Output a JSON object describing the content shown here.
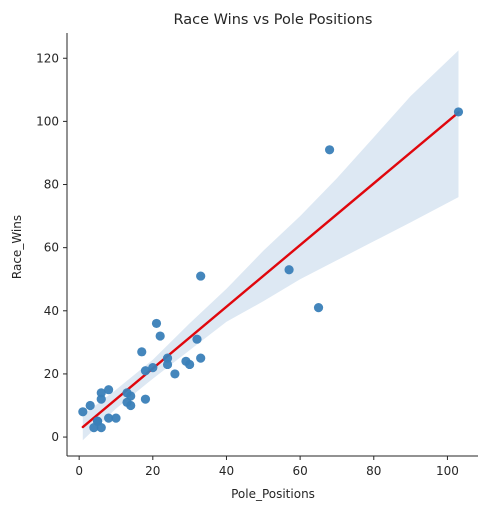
{
  "chart_data": {
    "type": "scatter",
    "title": "Race Wins vs Pole Positions",
    "xlabel": "Pole_Positions",
    "ylabel": "Race_Wins",
    "xlim": [
      -3.3,
      108.3
    ],
    "ylim": [
      -6,
      128
    ],
    "xticks": [
      0,
      20,
      40,
      60,
      80,
      100
    ],
    "yticks": [
      0,
      20,
      40,
      60,
      80,
      100,
      120
    ],
    "grid": false,
    "legend": "none",
    "colors": {
      "points": "#3a7fb8",
      "regression": "#e0070d",
      "band": "#dde8f3",
      "axis": "#262626"
    },
    "series": [
      {
        "x": [
          103,
          68,
          33,
          57,
          65,
          21,
          22,
          32,
          17,
          33,
          24,
          29,
          20,
          30,
          24,
          18,
          26,
          6,
          8,
          13,
          18,
          6,
          14,
          13,
          3,
          14,
          1,
          8,
          10,
          5,
          4,
          6,
          5
        ],
        "y": [
          103,
          91,
          51,
          53,
          41,
          36,
          32,
          31,
          27,
          25,
          25,
          24,
          22,
          23,
          23,
          21,
          20,
          14,
          15,
          14,
          12,
          12,
          13,
          11,
          10,
          10,
          8,
          6,
          6,
          5,
          3,
          3,
          5
        ]
      }
    ],
    "regression": {
      "slope": 0.977,
      "intercept": 2.2,
      "x_range": [
        1,
        103
      ]
    },
    "confidence_band": {
      "x": [
        1,
        10,
        20,
        30,
        40,
        50,
        60,
        70,
        80,
        90,
        103
      ],
      "lower": [
        -1,
        9,
        18.5,
        27.5,
        36.5,
        43,
        50,
        56,
        62,
        68,
        76
      ],
      "upper": [
        7,
        15,
        24.5,
        36,
        47,
        59,
        70,
        82,
        95,
        108,
        122.5
      ]
    }
  }
}
